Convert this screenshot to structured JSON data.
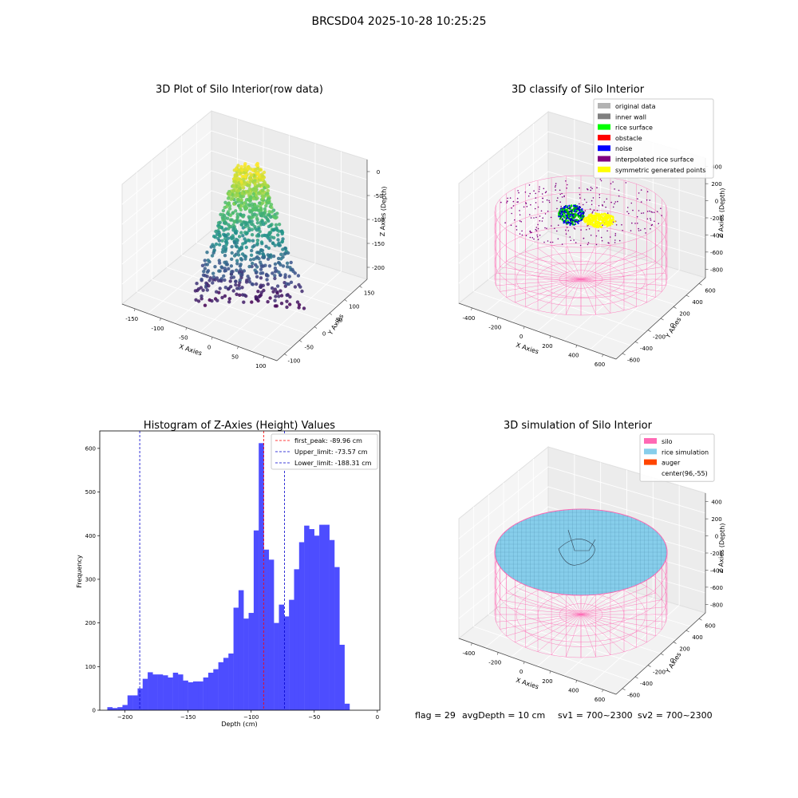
{
  "suptitle": "BRCSD04 2025-10-28 10:25:25",
  "chart_data": [
    {
      "type": "scatter",
      "projection": "3d",
      "title": "3D Plot of Silo Interior(row data)",
      "xlabel": "X Axies",
      "ylabel": "Y Axies",
      "zlabel": "Z Axies (Depth)",
      "xticks": [
        "-150",
        "-100",
        "-50",
        "0",
        "50",
        "100"
      ],
      "yticks": [
        "-100",
        "-50",
        "0",
        "50",
        "100",
        "150"
      ],
      "zticks": [
        "0",
        "-50",
        "-100",
        "-150",
        "-200"
      ],
      "xlim": [
        -175,
        110
      ],
      "ylim": [
        -110,
        160
      ],
      "zlim": [
        -230,
        0
      ],
      "colormap": "viridis"
    },
    {
      "type": "scatter",
      "projection": "3d",
      "title": "3D classify of Silo Interior",
      "xlabel": "X Axies",
      "ylabel": "Y Axies",
      "zlabel": "Z Axies (Depth)",
      "xticks": [
        "-400",
        "-200",
        "0",
        "200",
        "400",
        "600"
      ],
      "yticks": [
        "-600",
        "-400",
        "-200",
        "0",
        "200",
        "400",
        "600"
      ],
      "zticks": [
        "400",
        "200",
        "0",
        "-200",
        "-400",
        "-600",
        "-800"
      ],
      "xlim": [
        -500,
        700
      ],
      "ylim": [
        -700,
        700
      ],
      "zlim": [
        -900,
        450
      ],
      "legend_position": "top-right",
      "legend": [
        {
          "label": "original data",
          "color": "#b3b3b3"
        },
        {
          "label": "inner wall",
          "color": "#808080"
        },
        {
          "label": "rice surface",
          "color": "#00ff00"
        },
        {
          "label": "obstacle",
          "color": "#ff0000"
        },
        {
          "label": "noise",
          "color": "#0000ff"
        },
        {
          "label": "interpolated rice surface",
          "color": "#800080"
        },
        {
          "label": "symmetric generated points",
          "color": "#ffff00"
        }
      ],
      "wall_color": "#ff69b4"
    },
    {
      "type": "bar",
      "title": "Histogram of Z-Axies (Height) Values",
      "xlabel": "Depth (cm)",
      "ylabel": "Frequency",
      "xlim": [
        -220,
        2
      ],
      "ylim": [
        0,
        640
      ],
      "xticks": [
        -200,
        -150,
        -100,
        -50,
        0
      ],
      "yticks": [
        0,
        100,
        200,
        300,
        400,
        500,
        600
      ],
      "bar_color": "#4d4dff",
      "bin_width": 4,
      "bin_start": -214,
      "values": [
        7,
        5,
        7,
        12,
        34,
        34,
        50,
        72,
        87,
        82,
        82,
        80,
        75,
        86,
        82,
        68,
        64,
        66,
        66,
        75,
        86,
        94,
        110,
        120,
        130,
        235,
        275,
        210,
        223,
        412,
        612,
        368,
        345,
        200,
        242,
        215,
        253,
        323,
        385,
        423,
        415,
        400,
        425,
        425,
        390,
        328,
        150,
        15
      ],
      "vlines": [
        {
          "label": "first_peak: -89.96 cm",
          "x": -89.96,
          "color": "#ff0000"
        },
        {
          "label": "Upper_limit: -73.57 cm",
          "x": -73.57,
          "color": "#0000cc"
        },
        {
          "label": "Lower_limit: -188.31 cm",
          "x": -188.31,
          "color": "#0000cc"
        }
      ],
      "legend_position": "top-right"
    },
    {
      "type": "surface",
      "projection": "3d",
      "title": "3D simulation of Silo Interior",
      "xlabel": "X Axies",
      "ylabel": "Y Axies",
      "zlabel": "Z Axies (Depth)",
      "xticks": [
        "-400",
        "-200",
        "0",
        "200",
        "400",
        "600"
      ],
      "yticks": [
        "-600",
        "-400",
        "-200",
        "0",
        "200",
        "400",
        "600"
      ],
      "zticks": [
        "400",
        "200",
        "0",
        "-200",
        "-400",
        "-600",
        "-800"
      ],
      "legend_position": "top-right",
      "legend": [
        {
          "label": "silo",
          "color": "#ff69b4"
        },
        {
          "label": "rice simulation",
          "color": "#87ceeb"
        },
        {
          "label": "auger",
          "color": "#ff4500"
        },
        {
          "label": "center(96,-55)",
          "color": "none"
        }
      ],
      "surface_color": "#87ceeb",
      "wall_color": "#ff69b4"
    }
  ],
  "footer": {
    "flag": "flag = 29",
    "avg_depth": "avgDepth = 10 cm",
    "sv1": "sv1 = 700~2300",
    "sv2": "sv2 = 700~2300"
  }
}
